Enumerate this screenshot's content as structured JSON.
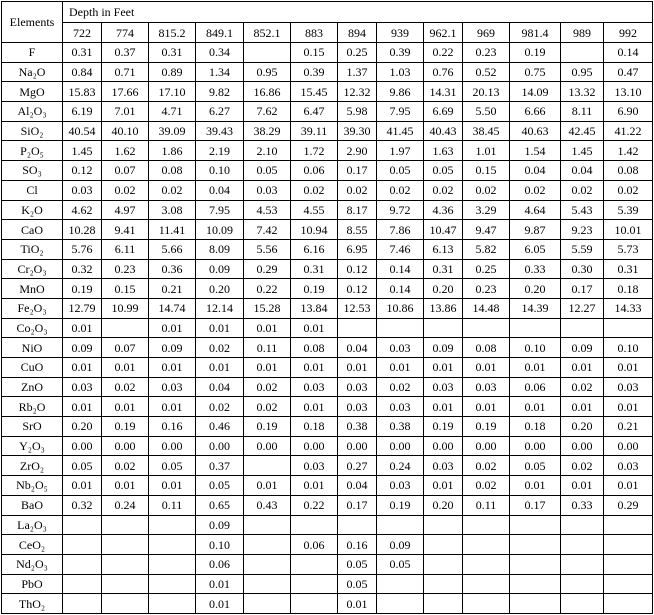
{
  "header": {
    "elements_label": "Elements",
    "depth_label": "Depth in Feet",
    "depths": [
      "722",
      "774",
      "815.2",
      "849.1",
      "852.1",
      "883",
      "894",
      "939",
      "962.1",
      "969",
      "981.4",
      "989",
      "992"
    ]
  },
  "rows": [
    {
      "element": "F",
      "values": [
        "0.31",
        "0.37",
        "0.31",
        "0.34",
        "",
        "0.15",
        "0.25",
        "0.39",
        "0.22",
        "0.23",
        "0.19",
        "",
        "0.14"
      ]
    },
    {
      "element": "Na₂O",
      "values": [
        "0.84",
        "0.71",
        "0.89",
        "1.34",
        "0.95",
        "0.39",
        "1.37",
        "1.03",
        "0.76",
        "0.52",
        "0.75",
        "0.95",
        "0.47"
      ]
    },
    {
      "element": "MgO",
      "values": [
        "15.83",
        "17.66",
        "17.10",
        "9.82",
        "16.86",
        "15.45",
        "12.32",
        "9.86",
        "14.31",
        "20.13",
        "14.09",
        "13.32",
        "13.10"
      ]
    },
    {
      "element": "Al₂O₃",
      "values": [
        "6.19",
        "7.01",
        "4.71",
        "6.27",
        "7.62",
        "6.47",
        "5.98",
        "7.95",
        "6.69",
        "5.50",
        "6.66",
        "8.11",
        "6.90"
      ]
    },
    {
      "element": "SiO₂",
      "values": [
        "40.54",
        "40.10",
        "39.09",
        "39.43",
        "38.29",
        "39.11",
        "39.30",
        "41.45",
        "40.43",
        "38.45",
        "40.63",
        "42.45",
        "41.22"
      ]
    },
    {
      "element": "P₂O₅",
      "values": [
        "1.45",
        "1.62",
        "1.86",
        "2.19",
        "2.10",
        "1.72",
        "2.90",
        "1.97",
        "1.63",
        "1.01",
        "1.54",
        "1.45",
        "1.42"
      ]
    },
    {
      "element": "SO₃",
      "values": [
        "0.12",
        "0.07",
        "0.08",
        "0.10",
        "0.05",
        "0.06",
        "0.17",
        "0.05",
        "0.05",
        "0.15",
        "0.04",
        "0.04",
        "0.08"
      ]
    },
    {
      "element": "Cl",
      "values": [
        "0.03",
        "0.02",
        "0.02",
        "0.04",
        "0.03",
        "0.02",
        "0.02",
        "0.02",
        "0.02",
        "0.02",
        "0.02",
        "0.02",
        "0.02"
      ]
    },
    {
      "element": "K₂O",
      "values": [
        "4.62",
        "4.97",
        "3.08",
        "7.95",
        "4.53",
        "4.55",
        "8.17",
        "9.72",
        "4.36",
        "3.29",
        "4.64",
        "5.43",
        "5.39"
      ]
    },
    {
      "element": "CaO",
      "values": [
        "10.28",
        "9.41",
        "11.41",
        "10.09",
        "7.42",
        "10.94",
        "8.55",
        "7.86",
        "10.47",
        "9.47",
        "9.87",
        "9.23",
        "10.01"
      ]
    },
    {
      "element": "TiO₂",
      "values": [
        "5.76",
        "6.11",
        "5.66",
        "8.09",
        "5.56",
        "6.16",
        "6.95",
        "7.46",
        "6.13",
        "5.82",
        "6.05",
        "5.59",
        "5.73"
      ]
    },
    {
      "element": "Cr₂O₃",
      "values": [
        "0.32",
        "0.23",
        "0.36",
        "0.09",
        "0.29",
        "0.31",
        "0.12",
        "0.14",
        "0.31",
        "0.25",
        "0.33",
        "0.30",
        "0.31"
      ]
    },
    {
      "element": "MnO",
      "values": [
        "0.19",
        "0.15",
        "0.21",
        "0.20",
        "0.22",
        "0.19",
        "0.12",
        "0.14",
        "0.20",
        "0.23",
        "0.20",
        "0.17",
        "0.18"
      ]
    },
    {
      "element": "Fe₂O₃",
      "values": [
        "12.79",
        "10.99",
        "14.74",
        "12.14",
        "15.28",
        "13.84",
        "12.53",
        "10.86",
        "13.86",
        "14.48",
        "14.39",
        "12.27",
        "14.33"
      ]
    },
    {
      "element": "Co₂O₃",
      "values": [
        "0.01",
        "",
        "0.01",
        "0.01",
        "0.01",
        "0.01",
        "",
        "",
        "",
        "",
        "",
        "",
        ""
      ]
    },
    {
      "element": "NiO",
      "values": [
        "0.09",
        "0.07",
        "0.09",
        "0.02",
        "0.11",
        "0.08",
        "0.04",
        "0.03",
        "0.09",
        "0.08",
        "0.10",
        "0.09",
        "0.10"
      ]
    },
    {
      "element": "CuO",
      "values": [
        "0.01",
        "0.01",
        "0.01",
        "0.01",
        "0.01",
        "0.01",
        "0.01",
        "0.01",
        "0.01",
        "0.01",
        "0.01",
        "0.01",
        "0.01"
      ]
    },
    {
      "element": "ZnO",
      "values": [
        "0.03",
        "0.02",
        "0.03",
        "0.04",
        "0.02",
        "0.03",
        "0.03",
        "0.02",
        "0.03",
        "0.03",
        "0.06",
        "0.02",
        "0.03"
      ]
    },
    {
      "element": "Rb₂O",
      "values": [
        "0.01",
        "0.01",
        "0.01",
        "0.02",
        "0.02",
        "0.01",
        "0.03",
        "0.03",
        "0.01",
        "0.01",
        "0.01",
        "0.01",
        "0.01"
      ]
    },
    {
      "element": "SrO",
      "values": [
        "0.20",
        "0.19",
        "0.16",
        "0.46",
        "0.19",
        "0.18",
        "0.38",
        "0.38",
        "0.19",
        "0.19",
        "0.18",
        "0.20",
        "0.21"
      ]
    },
    {
      "element": "Y₂O₃",
      "values": [
        "0.00",
        "0.00",
        "0.00",
        "0.00",
        "0.00",
        "0.00",
        "0.00",
        "0.00",
        "0.00",
        "0.00",
        "0.00",
        "0.00",
        "0.00"
      ]
    },
    {
      "element": "ZrO₂",
      "values": [
        "0.05",
        "0.02",
        "0.05",
        "0.37",
        "",
        "0.03",
        "0.27",
        "0.24",
        "0.03",
        "0.02",
        "0.05",
        "0.02",
        "0.03"
      ]
    },
    {
      "element": "Nb₂O₅",
      "values": [
        "0.01",
        "0.01",
        "0.01",
        "0.05",
        "0.01",
        "0.01",
        "0.04",
        "0.03",
        "0.01",
        "0.02",
        "0.01",
        "0.01",
        "0.01"
      ]
    },
    {
      "element": "BaO",
      "values": [
        "0.32",
        "0.24",
        "0.11",
        "0.65",
        "0.43",
        "0.22",
        "0.17",
        "0.19",
        "0.20",
        "0.11",
        "0.17",
        "0.33",
        "0.29"
      ]
    },
    {
      "element": "La₂O₃",
      "values": [
        "",
        "",
        "",
        "0.09",
        "",
        "",
        "",
        "",
        "",
        "",
        "",
        "",
        ""
      ]
    },
    {
      "element": "CeO₂",
      "values": [
        "",
        "",
        "",
        "0.10",
        "",
        "0.06",
        "0.16",
        "0.09",
        "",
        "",
        "",
        "",
        ""
      ]
    },
    {
      "element": "Nd₂O₃",
      "values": [
        "",
        "",
        "",
        "0.06",
        "",
        "",
        "0.05",
        "0.05",
        "",
        "",
        "",
        "",
        ""
      ]
    },
    {
      "element": "PbO",
      "values": [
        "",
        "",
        "",
        "0.01",
        "",
        "",
        "0.05",
        "",
        "",
        "",
        "",
        "",
        ""
      ]
    },
    {
      "element": "ThO₂",
      "values": [
        "",
        "",
        "",
        "0.01",
        "",
        "",
        "0.01",
        "",
        "",
        "",
        "",
        "",
        ""
      ]
    }
  ]
}
